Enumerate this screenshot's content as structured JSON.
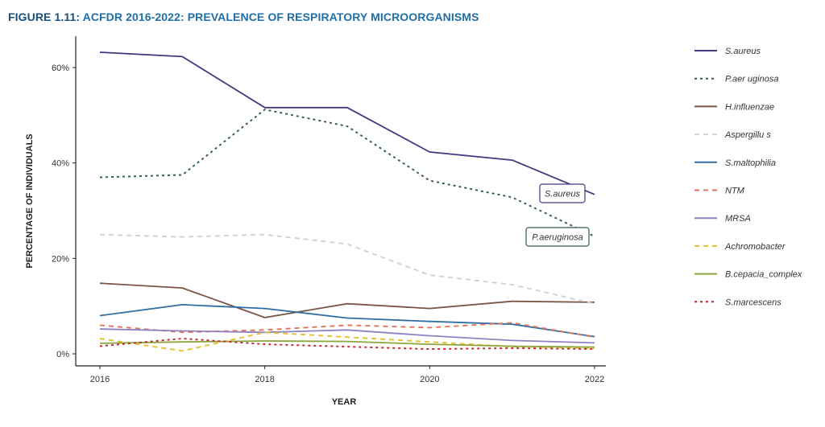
{
  "figure": {
    "number": "FIGURE 1.11:",
    "title": "ACFDR 2016-2022: PREVALENCE OF RESPIRATORY MICROORGANISMS"
  },
  "chart_data": {
    "type": "line",
    "xlabel": "YEAR",
    "ylabel": "PERCENTAGE OF INDIVIDUALS",
    "x": [
      2016,
      2017,
      2018,
      2019,
      2020,
      2021,
      2022
    ],
    "xticks": [
      2016,
      2018,
      2020,
      2022
    ],
    "xtick_labels": [
      "2016",
      "2018",
      "2020",
      "2022"
    ],
    "xlim": [
      2016,
      2022
    ],
    "ylim": [
      0,
      65
    ],
    "yticks": [
      0,
      20,
      40,
      60
    ],
    "ytick_labels": [
      "0%",
      "20%",
      "40%",
      "60%"
    ],
    "grid": false,
    "legend_position": "right",
    "series": [
      {
        "name": "S.aureus",
        "color": "#3f3a80",
        "dash": "solid",
        "values": [
          63.2,
          62.3,
          51.6,
          51.6,
          42.3,
          40.6,
          33.4
        ]
      },
      {
        "name": "P.aer uginosa",
        "color": "#2f5b4a",
        "dash": "dotted",
        "values": [
          37.0,
          37.5,
          51.2,
          47.7,
          36.3,
          32.8,
          24.6
        ]
      },
      {
        "name": "H.influenzae",
        "color": "#7a5543",
        "dash": "solid",
        "values": [
          14.8,
          13.8,
          7.6,
          10.5,
          9.5,
          11.0,
          10.8
        ]
      },
      {
        "name": "Aspergillu s",
        "color": "#d2cfdc",
        "dash": "dashed",
        "values": [
          25.0,
          24.5,
          25.0,
          23.0,
          16.5,
          14.5,
          10.5
        ]
      },
      {
        "name": "S.maltophilia",
        "color": "#2f6fa5",
        "dash": "solid",
        "values": [
          8.0,
          10.3,
          9.5,
          7.5,
          6.8,
          6.2,
          3.6
        ]
      },
      {
        "name": "NTM",
        "color": "#e0755a",
        "dash": "dashed",
        "values": [
          6.0,
          4.5,
          5.0,
          6.0,
          5.5,
          6.5,
          3.5
        ]
      },
      {
        "name": "MRSA",
        "color": "#8f82c2",
        "dash": "solid",
        "values": [
          5.2,
          4.8,
          4.5,
          5.0,
          3.8,
          2.8,
          2.3
        ]
      },
      {
        "name": "Achromobacter",
        "color": "#e8c02c",
        "dash": "dashed",
        "values": [
          3.2,
          0.6,
          4.5,
          3.5,
          2.5,
          1.5,
          1.2
        ]
      },
      {
        "name": "B.cepacia_complex",
        "color": "#8aa63c",
        "dash": "solid",
        "values": [
          2.2,
          2.5,
          2.7,
          2.6,
          2.0,
          1.6,
          1.4
        ]
      },
      {
        "name": "S.marcescens",
        "color": "#c4222a",
        "dash": "dotted",
        "values": [
          1.6,
          3.2,
          2.0,
          1.5,
          1.0,
          1.2,
          1.0
        ]
      }
    ],
    "annotations": [
      {
        "text": "S.aureus",
        "series": "S.aureus"
      },
      {
        "text": "P.aeruginosa",
        "series": "P.aer uginosa"
      }
    ]
  }
}
